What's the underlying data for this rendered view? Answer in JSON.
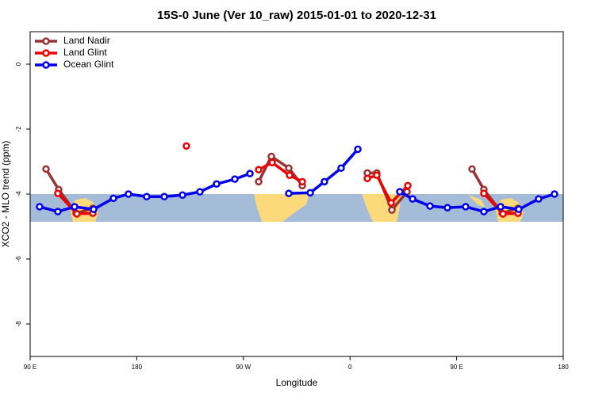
{
  "chart_data": {
    "type": "line",
    "title": "15S-0 June (Ver 10_raw)   2015-01-01 to 2020-12-31",
    "x_label": "Longitude",
    "y_label": "XCO2 - MLO trend (ppm)",
    "xlim": [
      90,
      540
    ],
    "ylim": [
      -9,
      1
    ],
    "xticks": [
      {
        "value": 90,
        "label": "90 E"
      },
      {
        "value": 180,
        "label": "180"
      },
      {
        "value": 270,
        "label": "90 W"
      },
      {
        "value": 360,
        "label": "0"
      },
      {
        "value": 450,
        "label": "90 E"
      },
      {
        "value": 540,
        "label": "180"
      }
    ],
    "yticks": [
      0,
      -2,
      -4,
      -6,
      -8
    ],
    "legend": "top-left",
    "series": [
      {
        "name": "Land Nadir",
        "color": "#993333",
        "x": [
          103.4,
          114.1,
          128.8,
          142.9,
          null,
          282.9,
          293.6,
          308.3,
          319.7,
          null,
          374.6,
          382.6,
          395.4,
          408.1,
          null,
          463,
          473,
          488.4,
          501.8
        ],
        "values": [
          -3.23,
          -3.86,
          -4.59,
          -4.44,
          null,
          -3.62,
          -2.84,
          -3.2,
          -3.74,
          null,
          -3.35,
          -3.35,
          -4.49,
          -3.93,
          null,
          -3.23,
          -3.86,
          -4.59,
          -4.44
        ]
      },
      {
        "name": "Land Glint",
        "color": "#ee0000",
        "x": [
          113.4,
          129.5,
          142.9,
          null,
          221.9,
          null,
          282.9,
          294.3,
          309,
          319.7,
          null,
          374.6,
          382.6,
          394.7,
          408.8,
          null,
          473,
          489.1,
          501.8
        ],
        "values": [
          -3.98,
          -4.61,
          -4.59,
          null,
          -2.52,
          null,
          -3.25,
          -3.03,
          -3.42,
          -3.62,
          null,
          -3.52,
          -3.42,
          -4.27,
          -3.74,
          null,
          -3.98,
          -4.61,
          -4.59
        ]
      },
      {
        "name": "Ocean Glint",
        "color": "#0000ee",
        "x": [
          98,
          113.4,
          127.5,
          143.6,
          160.3,
          173,
          188.4,
          203.2,
          218.6,
          233.3,
          247.4,
          262.8,
          275.5,
          null,
          308.3,
          326.4,
          338.4,
          352.5,
          366.6,
          null,
          402,
          412.8,
          427.5,
          442.2,
          457.6,
          473,
          487.1,
          502.5,
          519.2,
          532.6
        ],
        "values": [
          -4.39,
          -4.54,
          -4.39,
          -4.47,
          -4.13,
          -4.0,
          -4.08,
          -4.08,
          -4.03,
          -3.93,
          -3.69,
          -3.54,
          -3.37,
          null,
          -3.98,
          -3.96,
          -3.62,
          -3.2,
          -2.62,
          null,
          -3.93,
          -4.15,
          -4.37,
          -4.42,
          -4.39,
          -4.54,
          -4.39,
          -4.47,
          -4.15,
          -4.0
        ]
      }
    ]
  }
}
